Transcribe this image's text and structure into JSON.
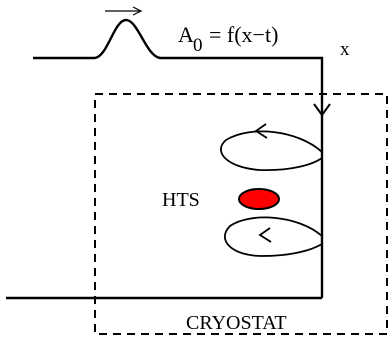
{
  "labels": {
    "pulse_equation": "A",
    "pulse_subscript": "0",
    "pulse_function": "= f(x−t)",
    "axis": "x",
    "sample": "HTS",
    "enclosure": "CRYOSTAT"
  },
  "colors": {
    "line": "#000000",
    "sample_fill": "#ff0000",
    "background": "#ffffff"
  }
}
